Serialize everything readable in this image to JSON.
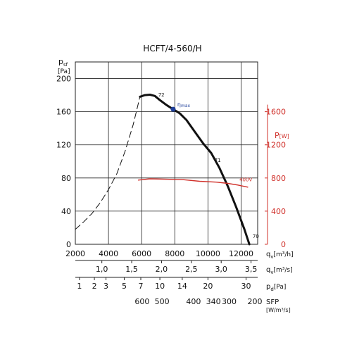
{
  "chart_data": {
    "type": "line",
    "title": "HCFT/4-560/H",
    "colors": {
      "performance": "#111111",
      "power": "#d0302a",
      "grid": "#222222",
      "highlight": "#1f3f9a"
    },
    "y_left": {
      "label_main": "p",
      "label_sub": "sf",
      "unit": "[Pa]",
      "ylim": [
        0,
        220
      ],
      "ticks": [
        0,
        40,
        80,
        120,
        160,
        200
      ]
    },
    "y_right": {
      "label": "P",
      "unit": "[W]",
      "ylim": [
        0,
        2200
      ],
      "ticks": [
        0,
        400,
        800,
        1200,
        1600
      ]
    },
    "x_main": {
      "label": "q",
      "label_sub": "v",
      "unit": "[m³/h]",
      "xlim": [
        2000,
        13000
      ],
      "ticks": [
        2000,
        4000,
        6000,
        8000,
        10000,
        12000
      ],
      "grid": true
    },
    "aux_axes": [
      {
        "key": "qv_m3s",
        "label": "q",
        "label_sub": "v",
        "unit": "[m³/s]",
        "ticks": [
          {
            "label": "1,0",
            "at": 3600
          },
          {
            "label": "1,5",
            "at": 5400
          },
          {
            "label": "2,0",
            "at": 7200
          },
          {
            "label": "2,5",
            "at": 9000
          },
          {
            "label": "3,0",
            "at": 10800
          },
          {
            "label": "3,5",
            "at": 12600
          }
        ]
      },
      {
        "key": "pd",
        "label": "p",
        "label_sub": "d",
        "unit": "[Pa]",
        "ticks": [
          {
            "label": "1",
            "at": 2250
          },
          {
            "label": "2",
            "at": 3150
          },
          {
            "label": "3",
            "at": 3850
          },
          {
            "label": "5",
            "at": 4950
          },
          {
            "label": "7",
            "at": 5950
          },
          {
            "label": "10",
            "at": 7100
          },
          {
            "label": "14",
            "at": 8450
          },
          {
            "label": "20",
            "at": 10000
          },
          {
            "label": "30",
            "at": 12300
          }
        ]
      },
      {
        "key": "sfp",
        "label": "SFP",
        "unit": "[W/m³/s]",
        "ticks": [
          {
            "label": "600",
            "at": 6200
          },
          {
            "label": "500",
            "at": 7400
          },
          {
            "label": "400",
            "at": 9300
          },
          {
            "label": "340",
            "at": 10500
          },
          {
            "label": "300",
            "at": 11450
          },
          {
            "label": "200",
            "at": 13000
          }
        ]
      }
    ],
    "series": [
      {
        "role": "pressure-dashed",
        "style": "dashed",
        "x": [
          2000,
          2500,
          3000,
          3500,
          4000,
          4500,
          5000,
          5500,
          5900
        ],
        "y": [
          18,
          27,
          37,
          50,
          66,
          85,
          112,
          145,
          178
        ]
      },
      {
        "role": "pressure-solid",
        "style": "solid",
        "x": [
          5900,
          6200,
          6500,
          6800,
          7100,
          7500,
          7900,
          8300,
          8700,
          9200,
          9700,
          10200,
          10700,
          11200,
          11700,
          12200,
          12500
        ],
        "y": [
          178,
          180,
          180.5,
          179,
          174,
          168,
          163,
          158,
          150,
          136,
          122,
          110,
          92,
          70,
          45,
          18,
          0
        ]
      },
      {
        "role": "power",
        "style": "solid",
        "axis": "right",
        "x": [
          5800,
          6500,
          7500,
          8500,
          9500,
          10500,
          11200,
          11800,
          12400
        ],
        "y": [
          775,
          790,
          785,
          780,
          760,
          750,
          735,
          715,
          690
        ]
      }
    ],
    "annotations": [
      {
        "text": "72",
        "x": 7000,
        "y": 176
      },
      {
        "text": "71",
        "x": 10400,
        "y": 97
      },
      {
        "text": "70",
        "x": 12700,
        "y": 5
      },
      {
        "text": "400V",
        "x": 11900,
        "y": 735,
        "axis": "right"
      }
    ],
    "marker": {
      "label": "η",
      "label_sub": "max",
      "x": 7900,
      "y": 163
    }
  }
}
